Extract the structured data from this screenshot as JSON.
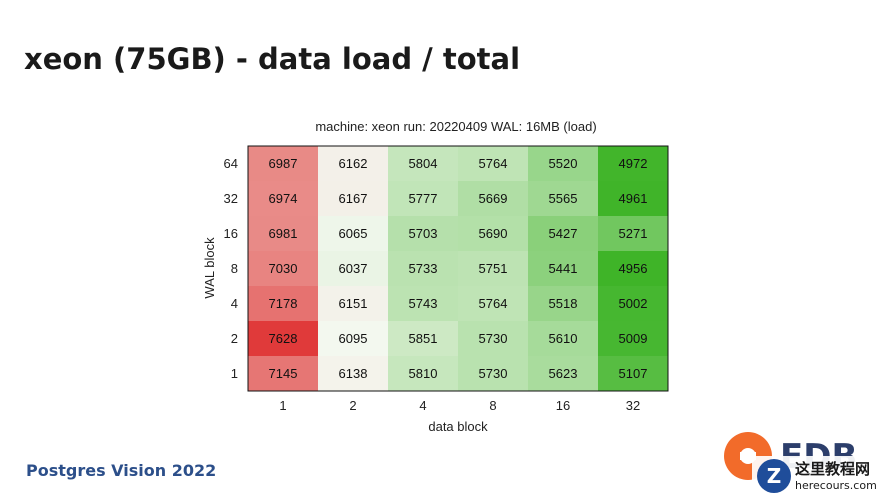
{
  "slide": {
    "title": "xeon (75GB) - data load / total",
    "footer": "Postgres Vision 2022",
    "logo_text": "EDB",
    "watermark_text": "这里教程网",
    "watermark_url": "herecours.com"
  },
  "chart_data": {
    "type": "heatmap",
    "title": "machine: xeon run: 20220409 WAL: 16MB (load)",
    "xlabel": "data block",
    "ylabel": "WAL block",
    "x_categories": [
      "1",
      "2",
      "4",
      "8",
      "16",
      "32"
    ],
    "y_categories": [
      "64",
      "32",
      "16",
      "8",
      "4",
      "2",
      "1"
    ],
    "values": [
      [
        6987,
        6162,
        5804,
        5764,
        5520,
        4972
      ],
      [
        6974,
        6167,
        5777,
        5669,
        5565,
        4961
      ],
      [
        6981,
        6065,
        5703,
        5690,
        5427,
        5271
      ],
      [
        7030,
        6037,
        5733,
        5751,
        5441,
        4956
      ],
      [
        7178,
        6151,
        5743,
        5764,
        5518,
        5002
      ],
      [
        7628,
        6095,
        5851,
        5730,
        5610,
        5009
      ],
      [
        7145,
        6138,
        5810,
        5730,
        5623,
        5107
      ]
    ],
    "color_scale": {
      "low": "#3fb428",
      "mid": "#f4f8f0",
      "high": "#e03a3a",
      "midpoint": 6100
    },
    "grid": false,
    "legend": "none"
  },
  "colors": {
    "title": "#1a1a1a",
    "footer": "#2c4f8a",
    "logo_orange": "#f26b2a",
    "logo_navy": "#2c3e6b"
  }
}
